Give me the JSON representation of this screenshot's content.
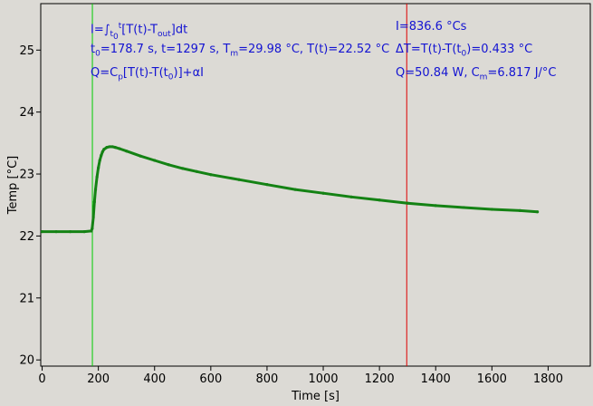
{
  "chart_data": {
    "type": "line",
    "xlabel": "Time [s]",
    "ylabel": "Temp [°C]",
    "xlim": [
      -5,
      1950
    ],
    "ylim": [
      19.9,
      25.75
    ],
    "x_ticks": [
      0,
      200,
      400,
      600,
      800,
      1000,
      1200,
      1400,
      1600,
      1800
    ],
    "y_ticks": [
      20,
      21,
      22,
      23,
      24,
      25
    ],
    "grid": false,
    "series": [
      {
        "color": "#148214",
        "x": [
          0,
          50,
          100,
          150,
          175,
          178,
          182,
          186,
          190,
          195,
          200,
          205,
          210,
          215,
          220,
          230,
          240,
          250,
          260,
          275,
          300,
          350,
          400,
          450,
          500,
          550,
          600,
          700,
          800,
          900,
          1000,
          1100,
          1200,
          1300,
          1400,
          1500,
          1600,
          1700,
          1762
        ],
        "y": [
          22.07,
          22.07,
          22.07,
          22.07,
          22.08,
          22.12,
          22.3,
          22.55,
          22.75,
          22.95,
          23.1,
          23.22,
          23.3,
          23.36,
          23.4,
          23.43,
          23.44,
          23.44,
          23.43,
          23.41,
          23.37,
          23.29,
          23.22,
          23.15,
          23.09,
          23.04,
          22.99,
          22.91,
          22.83,
          22.75,
          22.69,
          22.63,
          22.58,
          22.53,
          22.49,
          22.46,
          22.43,
          22.41,
          22.39
        ]
      }
    ],
    "vlines": [
      {
        "x": 178.7,
        "color": "#00cc00"
      },
      {
        "x": 1297,
        "color": "#dd0000"
      }
    ]
  },
  "annotations": {
    "color": "#1414d2",
    "integral_formula": "I=∫t0t[T(t)-Tout]dt",
    "params": "t0=178.7 s,   t=1297 s,   Tm=29.98 °C,  T(t)=22.52 °C",
    "heat_formula": "Q=Cp[T(t)-T(t0)]+αI",
    "integral_value": "I=836.6 °Cs",
    "delta_t": "ΔT=T(t)-T(t0)=0.433 °C",
    "power": "Q=50.84 W,   Cm=6.817 J/°C"
  }
}
